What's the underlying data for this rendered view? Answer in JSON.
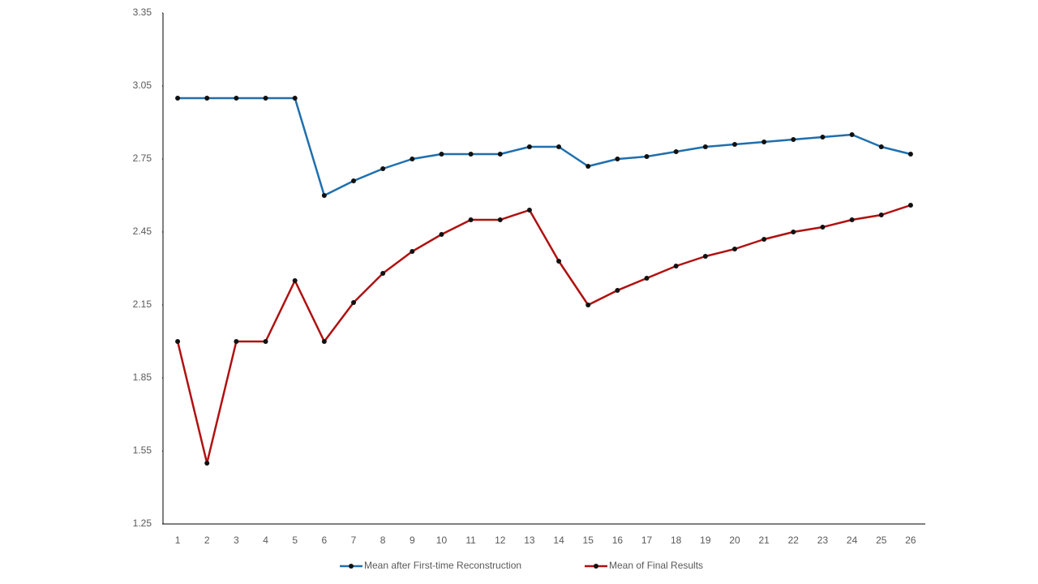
{
  "chart_data": {
    "type": "line",
    "categories": [
      "1",
      "2",
      "3",
      "4",
      "5",
      "6",
      "7",
      "8",
      "9",
      "10",
      "11",
      "12",
      "13",
      "14",
      "15",
      "16",
      "17",
      "18",
      "19",
      "20",
      "21",
      "22",
      "23",
      "24",
      "25",
      "26"
    ],
    "series": [
      {
        "name": "Mean after First-time Reconstruction",
        "color": "#1f6fae",
        "values": [
          3.0,
          3.0,
          3.0,
          3.0,
          3.0,
          2.6,
          2.66,
          2.71,
          2.75,
          2.77,
          2.77,
          2.77,
          2.8,
          2.8,
          2.72,
          2.75,
          2.76,
          2.78,
          2.8,
          2.81,
          2.82,
          2.83,
          2.84,
          2.85,
          2.8,
          2.77
        ]
      },
      {
        "name": "Mean of Final Results",
        "color": "#b01010",
        "values": [
          2.0,
          1.5,
          2.0,
          2.0,
          2.25,
          2.0,
          2.16,
          2.28,
          2.37,
          2.44,
          2.5,
          2.5,
          2.54,
          2.33,
          2.15,
          2.21,
          2.26,
          2.31,
          2.35,
          2.38,
          2.42,
          2.45,
          2.47,
          2.5,
          2.52,
          2.56
        ]
      }
    ],
    "ylim": [
      1.25,
      3.35
    ],
    "yticks": [
      1.25,
      1.55,
      1.85,
      2.15,
      2.45,
      2.75,
      3.05,
      3.35
    ],
    "grid": false,
    "legend": "bottom"
  }
}
